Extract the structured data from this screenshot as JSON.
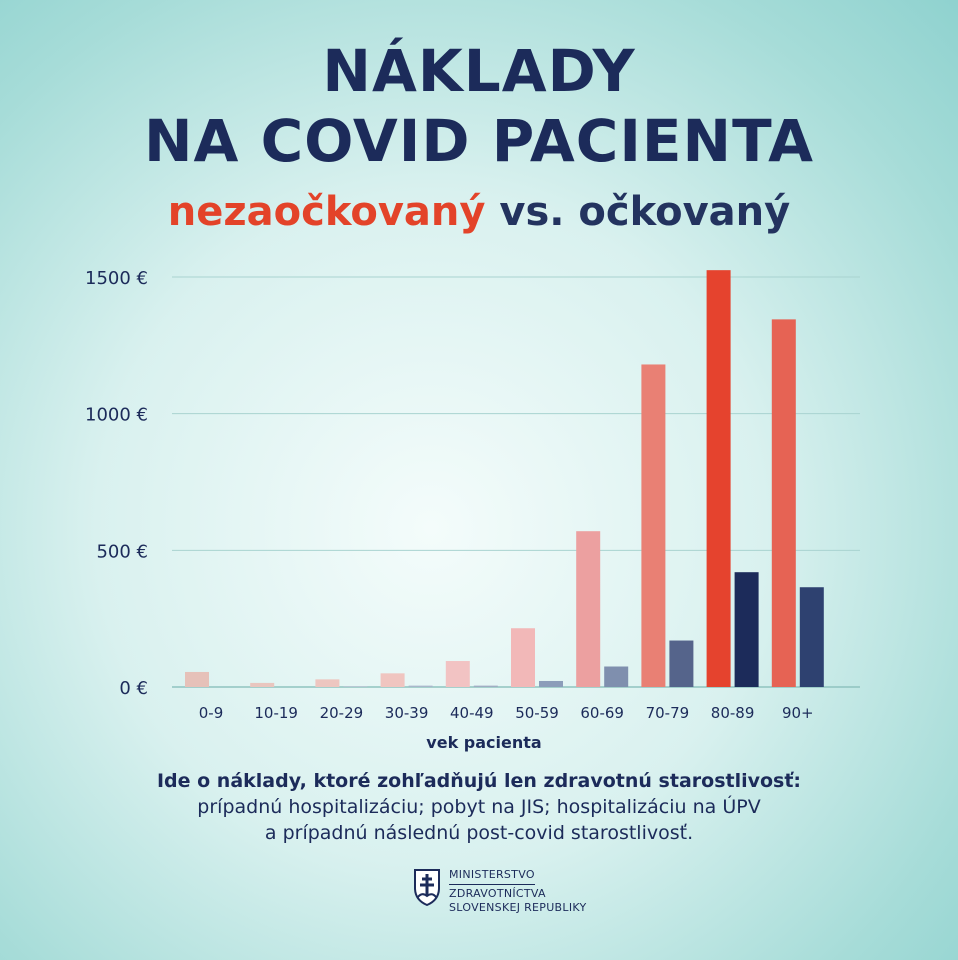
{
  "title_line1": "NÁKLADY",
  "title_line2": "NA COVID PACIENTA",
  "subtitle_unvaccinated": "nezaočkovaný",
  "subtitle_vs": "vs. očkovaný",
  "note_bold": "Ide o náklady, ktoré zohľadňujú len zdravotnú  starostlivosť:",
  "note_line2": "prípadnú hospitalizáciu; pobyt na JIS;  hospitalizáciu na ÚPV",
  "note_line3": "a prípadnú následnú post-covid starostlivosť.",
  "logo": {
    "line1": "MINISTERSTVO",
    "line2": "ZDRAVOTNÍCTVA",
    "line3": "SLOVENSKEJ REPUBLIKY",
    "icon": "double-cross-shield-icon"
  },
  "chart_data": {
    "type": "bar",
    "title": "NÁKLADY NA COVID PACIENTA",
    "subtitle": "nezaočkovaný vs. očkovaný",
    "xlabel": "vek pacienta",
    "ylabel": "",
    "categories": [
      "0-9",
      "10-19",
      "20-29",
      "30-39",
      "40-49",
      "50-59",
      "60-69",
      "70-79",
      "80-89",
      "90+"
    ],
    "series": [
      {
        "name": "nezaočkovaný",
        "values": [
          55,
          15,
          28,
          50,
          95,
          215,
          570,
          1180,
          1525,
          1345
        ],
        "colors": [
          "#e6c1b9",
          "#e9c6bf",
          "#edc6c0",
          "#f0c5c0",
          "#f2c3c3",
          "#f2b8b8",
          "#eca0a0",
          "#e98074",
          "#e5432e",
          "#e66354"
        ]
      },
      {
        "name": "očkovaný",
        "values": [
          0,
          0,
          3,
          5,
          5,
          22,
          75,
          170,
          420,
          365
        ],
        "colors": [
          "#c9d3dd",
          "#c9d3dd",
          "#b7c3d2",
          "#a9b7cb",
          "#a0adc3",
          "#8c9dba",
          "#7f8fae",
          "#55648b",
          "#1c2b5a",
          "#2e4170"
        ]
      }
    ],
    "yticks": [
      0,
      500,
      1000,
      1500
    ],
    "ytick_labels": [
      "0 €",
      "500 €",
      "1000 €",
      "1500 €"
    ],
    "ylim": [
      0,
      1500
    ],
    "grid": true,
    "grid_color": "#a9d3d0",
    "legend": "subtitle"
  }
}
